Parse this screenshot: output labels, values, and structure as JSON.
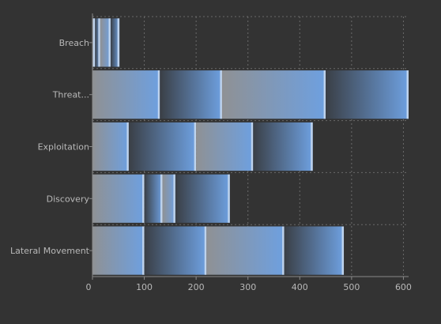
{
  "chart_data": {
    "type": "bar",
    "orientation": "horizontal",
    "stacked": true,
    "categories": [
      "Breach",
      "Threat...",
      "Exploitation",
      "Discovery",
      "Lateral Movement"
    ],
    "series": [
      {
        "values": [
          5,
          130,
          70,
          100,
          100
        ]
      },
      {
        "values": [
          10,
          120,
          130,
          35,
          120
        ]
      },
      {
        "values": [
          20,
          200,
          110,
          25,
          150
        ]
      },
      {
        "values": [
          17,
          160,
          115,
          105,
          115
        ]
      }
    ],
    "xlim": [
      0,
      610
    ],
    "xticks": [
      0,
      100,
      200,
      300,
      400,
      500,
      600
    ],
    "grid": true,
    "colors": {
      "background": "#333333",
      "grid": "#6a6a6a",
      "axis": "#8a8a8a",
      "tick_label": "#b8b8b8",
      "segment_light_start": "#8f9194",
      "segment_dark_start": "#3a3f46",
      "segment_end_blue": "#6ea0e0",
      "separator": "#c7d8ee"
    }
  }
}
